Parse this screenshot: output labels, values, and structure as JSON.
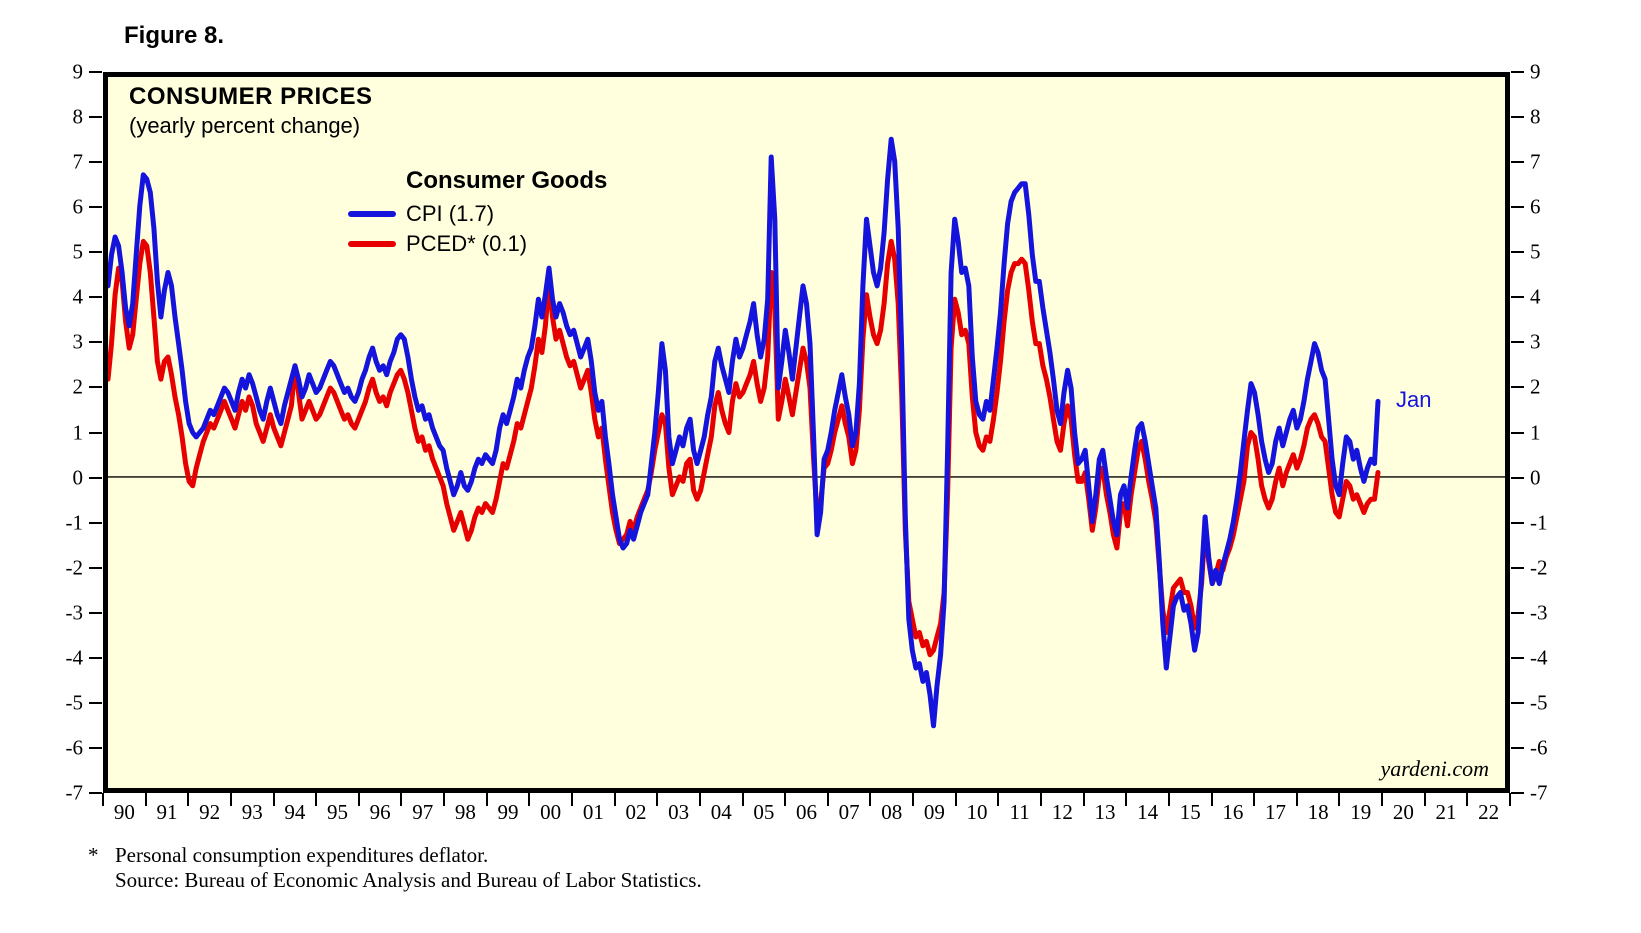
{
  "figure_label": "Figure 8.",
  "chart": {
    "title": "CONSUMER PRICES",
    "subtitle": "(yearly percent change)",
    "legend": {
      "title": "Consumer Goods",
      "items": [
        {
          "label": "CPI (1.7)",
          "color": "#1414dd"
        },
        {
          "label": "PCED* (0.1)",
          "color": "#e60000"
        }
      ]
    },
    "last_point_annotation": "Jan",
    "watermark": "yardeni.com",
    "plot_background": "#ffffdd",
    "frame_color": "#000000"
  },
  "footnote": {
    "marker": "*",
    "line1": "Personal consumption expenditures deflator.",
    "line2": "Source: Bureau of Economic Analysis and Bureau of Labor Statistics."
  },
  "chart_data": {
    "type": "line",
    "title": "CONSUMER PRICES (yearly percent change)",
    "x_unit": "monthly",
    "x_start": "1990-01",
    "x_end_of_data": "2020-01",
    "x_axis_span_years": 33,
    "x_tick_labels": [
      "90",
      "91",
      "92",
      "93",
      "94",
      "95",
      "96",
      "97",
      "98",
      "99",
      "00",
      "01",
      "02",
      "03",
      "04",
      "05",
      "06",
      "07",
      "08",
      "09",
      "10",
      "11",
      "12",
      "13",
      "14",
      "15",
      "16",
      "17",
      "18",
      "19",
      "20",
      "21",
      "22"
    ],
    "ylim": [
      -7,
      9
    ],
    "y_tick_labels": [
      "9",
      "8",
      "7",
      "6",
      "5",
      "4",
      "3",
      "2",
      "1",
      "0",
      "-1",
      "-2",
      "-3",
      "-4",
      "-5",
      "-6",
      "-7"
    ],
    "zero_line": true,
    "legend_position": "top-left-inside",
    "grid": false,
    "series": [
      {
        "name": "CPI",
        "legend_label": "CPI (1.7)",
        "color": "#1414dd",
        "last_value": 1.7,
        "values": [
          4.3,
          5.0,
          5.4,
          5.2,
          4.6,
          3.8,
          3.4,
          3.9,
          5.0,
          6.1,
          6.8,
          6.7,
          6.4,
          5.6,
          4.4,
          3.6,
          4.2,
          4.6,
          4.3,
          3.6,
          3.0,
          2.4,
          1.7,
          1.2,
          1.0,
          0.9,
          1.0,
          1.1,
          1.3,
          1.5,
          1.4,
          1.6,
          1.8,
          2.0,
          1.9,
          1.7,
          1.5,
          1.9,
          2.2,
          2.0,
          2.3,
          2.1,
          1.8,
          1.5,
          1.3,
          1.7,
          2.0,
          1.7,
          1.4,
          1.2,
          1.6,
          1.9,
          2.2,
          2.5,
          2.2,
          1.8,
          2.0,
          2.3,
          2.1,
          1.9,
          2.0,
          2.2,
          2.4,
          2.6,
          2.5,
          2.3,
          2.1,
          1.9,
          2.0,
          1.8,
          1.7,
          1.9,
          2.2,
          2.4,
          2.7,
          2.9,
          2.6,
          2.4,
          2.5,
          2.3,
          2.6,
          2.8,
          3.1,
          3.2,
          3.1,
          2.7,
          2.2,
          1.8,
          1.5,
          1.6,
          1.3,
          1.4,
          1.1,
          0.9,
          0.7,
          0.6,
          0.2,
          -0.1,
          -0.4,
          -0.2,
          0.1,
          -0.2,
          -0.3,
          -0.1,
          0.2,
          0.4,
          0.3,
          0.5,
          0.4,
          0.3,
          0.6,
          1.1,
          1.4,
          1.2,
          1.5,
          1.8,
          2.2,
          2.0,
          2.4,
          2.7,
          2.9,
          3.4,
          4.0,
          3.6,
          4.1,
          4.7,
          4.0,
          3.6,
          3.9,
          3.7,
          3.4,
          3.2,
          3.3,
          3.0,
          2.7,
          2.9,
          3.1,
          2.6,
          1.9,
          1.5,
          1.7,
          0.9,
          0.3,
          -0.4,
          -0.9,
          -1.4,
          -1.6,
          -1.5,
          -1.2,
          -1.4,
          -1.1,
          -0.8,
          -0.6,
          -0.4,
          0.3,
          1.0,
          1.9,
          3.0,
          2.4,
          0.9,
          0.3,
          0.6,
          0.9,
          0.7,
          1.1,
          1.3,
          0.6,
          0.3,
          0.6,
          0.9,
          1.4,
          1.8,
          2.6,
          2.9,
          2.5,
          2.2,
          1.9,
          2.6,
          3.1,
          2.7,
          2.9,
          3.2,
          3.5,
          3.9,
          3.2,
          2.7,
          3.1,
          4.0,
          7.2,
          5.8,
          2.0,
          2.6,
          3.3,
          2.8,
          2.2,
          2.9,
          3.6,
          4.3,
          3.9,
          3.0,
          0.9,
          -1.3,
          -0.8,
          0.4,
          0.6,
          1.0,
          1.5,
          1.9,
          2.3,
          1.8,
          1.4,
          0.7,
          1.0,
          2.1,
          4.3,
          5.8,
          5.2,
          4.6,
          4.3,
          4.7,
          5.5,
          6.7,
          7.6,
          7.1,
          5.6,
          2.8,
          -0.9,
          -3.2,
          -3.9,
          -4.3,
          -4.2,
          -4.6,
          -4.4,
          -4.9,
          -5.6,
          -4.7,
          -4.0,
          -2.8,
          0.6,
          4.6,
          5.8,
          5.3,
          4.6,
          4.7,
          4.3,
          2.7,
          1.7,
          1.4,
          1.3,
          1.7,
          1.5,
          2.2,
          2.9,
          3.7,
          4.8,
          5.7,
          6.2,
          6.4,
          6.5,
          6.6,
          6.6,
          5.9,
          5.0,
          4.4,
          4.4,
          3.8,
          3.3,
          2.8,
          2.2,
          1.5,
          1.2,
          1.9,
          2.4,
          2.0,
          1.0,
          0.3,
          0.4,
          0.6,
          -0.2,
          -1.0,
          -0.4,
          0.4,
          0.6,
          0.0,
          -0.5,
          -1.0,
          -1.3,
          -0.4,
          -0.2,
          -0.7,
          0.0,
          0.6,
          1.1,
          1.2,
          0.8,
          0.3,
          -0.2,
          -0.7,
          -1.9,
          -3.3,
          -4.3,
          -3.6,
          -2.9,
          -2.7,
          -2.6,
          -3.0,
          -2.9,
          -3.3,
          -3.9,
          -3.5,
          -2.2,
          -0.9,
          -1.8,
          -2.4,
          -2.1,
          -2.4,
          -2.0,
          -1.7,
          -1.4,
          -1.0,
          -0.5,
          0.1,
          0.8,
          1.5,
          2.1,
          1.9,
          1.4,
          0.8,
          0.4,
          0.1,
          0.3,
          0.8,
          1.1,
          0.7,
          1.0,
          1.3,
          1.5,
          1.1,
          1.3,
          1.7,
          2.2,
          2.6,
          3.0,
          2.8,
          2.4,
          2.2,
          1.3,
          0.4,
          -0.2,
          -0.4,
          0.3,
          0.9,
          0.8,
          0.4,
          0.6,
          0.2,
          -0.1,
          0.2,
          0.4,
          0.3,
          1.7
        ]
      },
      {
        "name": "PCED",
        "legend_label": "PCED* (0.1)",
        "color": "#e60000",
        "last_value": 0.1,
        "values": [
          2.2,
          3.0,
          4.1,
          4.7,
          4.4,
          3.5,
          2.9,
          3.2,
          4.0,
          4.8,
          5.3,
          5.2,
          4.6,
          3.6,
          2.6,
          2.2,
          2.6,
          2.7,
          2.3,
          1.8,
          1.4,
          0.9,
          0.3,
          -0.1,
          -0.2,
          0.2,
          0.5,
          0.8,
          1.0,
          1.2,
          1.1,
          1.3,
          1.5,
          1.7,
          1.5,
          1.3,
          1.1,
          1.4,
          1.7,
          1.5,
          1.8,
          1.6,
          1.2,
          1.0,
          0.8,
          1.1,
          1.4,
          1.1,
          0.9,
          0.7,
          1.0,
          1.3,
          1.6,
          2.5,
          1.9,
          1.3,
          1.5,
          1.7,
          1.5,
          1.3,
          1.4,
          1.6,
          1.8,
          2.0,
          1.9,
          1.7,
          1.5,
          1.3,
          1.4,
          1.2,
          1.1,
          1.3,
          1.5,
          1.7,
          2.0,
          2.2,
          1.9,
          1.7,
          1.8,
          1.6,
          1.9,
          2.1,
          2.3,
          2.4,
          2.2,
          1.9,
          1.5,
          1.1,
          0.8,
          0.9,
          0.6,
          0.7,
          0.4,
          0.2,
          0.0,
          -0.2,
          -0.6,
          -0.9,
          -1.2,
          -1.0,
          -0.8,
          -1.1,
          -1.4,
          -1.2,
          -0.9,
          -0.7,
          -0.8,
          -0.6,
          -0.7,
          -0.8,
          -0.5,
          -0.1,
          0.3,
          0.2,
          0.5,
          0.8,
          1.2,
          1.1,
          1.4,
          1.7,
          2.0,
          2.5,
          3.1,
          2.8,
          3.4,
          4.4,
          3.6,
          3.1,
          3.3,
          3.0,
          2.7,
          2.5,
          2.6,
          2.3,
          2.0,
          2.2,
          2.4,
          1.9,
          1.3,
          0.9,
          1.1,
          0.4,
          -0.2,
          -0.8,
          -1.2,
          -1.5,
          -1.4,
          -1.3,
          -1.0,
          -1.2,
          -0.9,
          -0.7,
          -0.5,
          -0.3,
          0.1,
          0.6,
          1.0,
          1.4,
          1.2,
          0.2,
          -0.4,
          -0.2,
          0.0,
          -0.1,
          0.3,
          0.4,
          -0.3,
          -0.5,
          -0.3,
          0.1,
          0.5,
          0.9,
          1.6,
          1.9,
          1.5,
          1.2,
          1.0,
          1.7,
          2.1,
          1.8,
          1.9,
          2.1,
          2.3,
          2.6,
          2.1,
          1.7,
          2.0,
          2.7,
          4.6,
          3.8,
          1.3,
          1.7,
          2.2,
          1.8,
          1.4,
          1.9,
          2.4,
          2.9,
          2.6,
          2.0,
          0.4,
          -0.9,
          -0.6,
          0.2,
          0.3,
          0.6,
          1.0,
          1.3,
          1.6,
          1.2,
          0.9,
          0.3,
          0.6,
          1.5,
          3.1,
          4.1,
          3.6,
          3.2,
          3.0,
          3.3,
          3.9,
          4.8,
          5.3,
          4.9,
          3.9,
          1.8,
          -1.2,
          -2.8,
          -3.2,
          -3.6,
          -3.5,
          -3.8,
          -3.7,
          -4.0,
          -3.9,
          -3.6,
          -3.3,
          -2.6,
          -0.4,
          2.9,
          4.0,
          3.7,
          3.2,
          3.3,
          3.0,
          1.8,
          1.0,
          0.7,
          0.6,
          0.9,
          0.8,
          1.3,
          1.9,
          2.6,
          3.5,
          4.2,
          4.6,
          4.8,
          4.8,
          4.9,
          4.8,
          4.2,
          3.5,
          3.0,
          3.0,
          2.5,
          2.2,
          1.8,
          1.3,
          0.8,
          0.6,
          1.2,
          1.6,
          1.3,
          0.5,
          -0.1,
          -0.1,
          0.1,
          -0.5,
          -1.2,
          -0.7,
          0.0,
          0.2,
          -0.4,
          -0.8,
          -1.3,
          -1.6,
          -0.8,
          -0.6,
          -1.1,
          -0.4,
          0.1,
          0.6,
          0.8,
          0.4,
          -0.1,
          -0.5,
          -1.0,
          -2.0,
          -3.0,
          -3.5,
          -3.0,
          -2.5,
          -2.4,
          -2.3,
          -2.6,
          -2.6,
          -2.9,
          -3.4,
          -3.1,
          -2.4,
          -1.1,
          -1.9,
          -2.4,
          -2.2,
          -1.9,
          -2.1,
          -1.8,
          -1.6,
          -1.3,
          -0.9,
          -0.5,
          -0.1,
          0.7,
          1.0,
          0.9,
          0.4,
          -0.2,
          -0.5,
          -0.7,
          -0.5,
          -0.1,
          0.2,
          -0.2,
          0.1,
          0.3,
          0.5,
          0.2,
          0.4,
          0.7,
          1.1,
          1.3,
          1.4,
          1.2,
          0.9,
          0.8,
          0.2,
          -0.4,
          -0.8,
          -0.9,
          -0.5,
          -0.1,
          -0.2,
          -0.5,
          -0.4,
          -0.6,
          -0.8,
          -0.6,
          -0.5,
          -0.5,
          0.1
        ]
      }
    ]
  }
}
